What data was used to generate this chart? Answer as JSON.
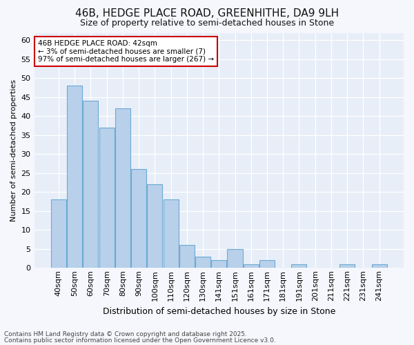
{
  "title_line1": "46B, HEDGE PLACE ROAD, GREENHITHE, DA9 9LH",
  "title_line2": "Size of property relative to semi-detached houses in Stone",
  "xlabel": "Distribution of semi-detached houses by size in Stone",
  "ylabel": "Number of semi-detached properties",
  "categories": [
    "40sqm",
    "50sqm",
    "60sqm",
    "70sqm",
    "80sqm",
    "90sqm",
    "100sqm",
    "110sqm",
    "120sqm",
    "130sqm",
    "141sqm",
    "151sqm",
    "161sqm",
    "171sqm",
    "181sqm",
    "191sqm",
    "201sqm",
    "211sqm",
    "221sqm",
    "231sqm",
    "241sqm"
  ],
  "values": [
    18,
    48,
    44,
    37,
    42,
    26,
    22,
    18,
    6,
    3,
    2,
    5,
    1,
    2,
    0,
    1,
    0,
    0,
    1,
    0,
    1
  ],
  "bar_color": "#b8d0ea",
  "bar_edge_color": "#6aaad4",
  "annotation_text": "46B HEDGE PLACE ROAD: 42sqm\n← 3% of semi-detached houses are smaller (7)\n97% of semi-detached houses are larger (267) →",
  "annotation_box_color": "#ffffff",
  "annotation_border_color": "#cc0000",
  "ylim": [
    0,
    62
  ],
  "yticks": [
    0,
    5,
    10,
    15,
    20,
    25,
    30,
    35,
    40,
    45,
    50,
    55,
    60
  ],
  "plot_bg_color": "#e8eef8",
  "fig_bg_color": "#f5f7fc",
  "grid_color": "#ffffff",
  "title1_fontsize": 11,
  "title2_fontsize": 9,
  "ylabel_fontsize": 8,
  "xlabel_fontsize": 9,
  "tick_fontsize": 8,
  "annotation_fontsize": 7.5,
  "footer_line1": "Contains HM Land Registry data © Crown copyright and database right 2025.",
  "footer_line2": "Contains public sector information licensed under the Open Government Licence v3.0."
}
